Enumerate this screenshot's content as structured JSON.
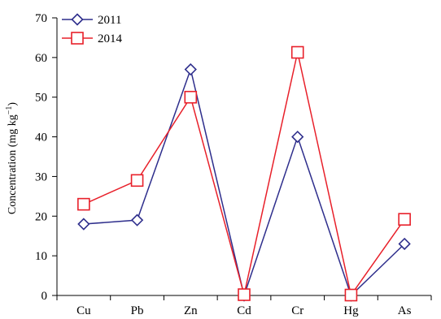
{
  "chart_data": {
    "type": "line",
    "categories": [
      "Cu",
      "Pb",
      "Zn",
      "Cd",
      "Cr",
      "Hg",
      "As"
    ],
    "ylabel": "Concentration (mg kg",
    "ylabel_sup": "−1",
    "ylabel_close": ")",
    "xlabel": "",
    "ylim": [
      0,
      70
    ],
    "yticks": [
      0,
      10,
      20,
      30,
      40,
      50,
      60,
      70
    ],
    "grid": false,
    "legend": "top-left",
    "series": [
      {
        "name": "2011",
        "marker": "diamond",
        "color": "#2e2e8c",
        "values": [
          18,
          19,
          57,
          0,
          40,
          0,
          13
        ]
      },
      {
        "name": "2014",
        "marker": "square",
        "color": "#e8202a",
        "values": [
          23,
          29,
          50,
          0.2,
          61.3,
          0.1,
          19.2
        ]
      }
    ]
  }
}
